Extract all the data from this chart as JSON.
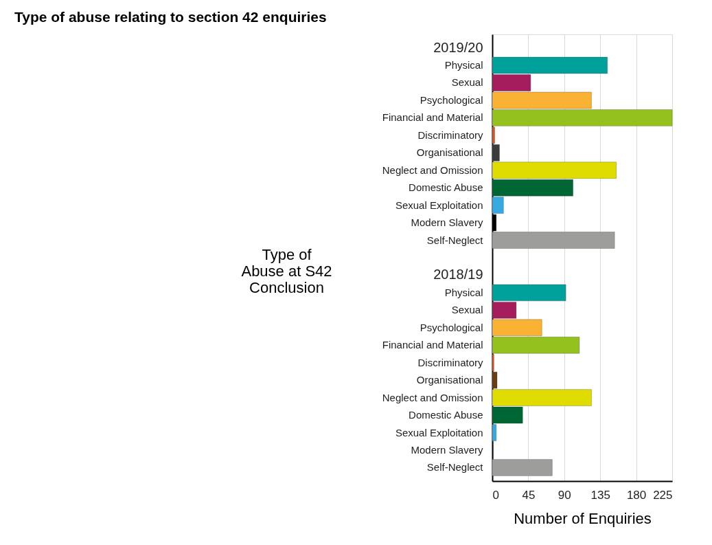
{
  "chart_data": {
    "type": "bar",
    "orientation": "horizontal",
    "title": "Type of abuse relating to section 42 enquiries",
    "xlabel": "Number of Enquiries",
    "ylabel": "Type of Abuse at S42 Conclusion",
    "categories": [
      "2019/20",
      "Physical",
      "Sexual",
      "Psychological",
      "Financial and Material",
      "Discriminatory",
      "Organisational",
      "Neglect and Omission",
      "Domestic Abuse",
      "Sexual Exploitation",
      "Modern Slavery",
      "Self-Neglect",
      null,
      "2018/19",
      "Physical",
      "Sexual",
      "Psychological",
      "Financial and Material",
      "Discriminatory",
      "Organisational",
      "Neglect and Omission",
      "Domestic Abuse",
      "Sexual Exploitation",
      "Modern Slavery",
      "Self-Neglect"
    ],
    "values": [
      null,
      144,
      48,
      124,
      225,
      3,
      9,
      155,
      101,
      14,
      5,
      153,
      null,
      null,
      92,
      30,
      62,
      109,
      2,
      6,
      124,
      38,
      5,
      1,
      75
    ],
    "colors": [
      null,
      "#00a19a",
      "#a51d5c",
      "#f9b233",
      "#95c11f",
      "#e94e1b",
      "#3c3c3b",
      "#dedc00",
      "#006633",
      "#36a9e1",
      "#000000",
      "#9d9d9c",
      null,
      null,
      "#00a19a",
      "#a51d5c",
      "#f9b233",
      "#95c11f",
      "#e94e1b",
      "#6b3e12",
      "#dedc00",
      "#006633",
      "#36a9e1",
      "#000000",
      "#9d9d9c"
    ],
    "xlim": [
      0,
      225
    ],
    "xticks": [
      0,
      45,
      90,
      135,
      180,
      225
    ],
    "grid": "x"
  }
}
